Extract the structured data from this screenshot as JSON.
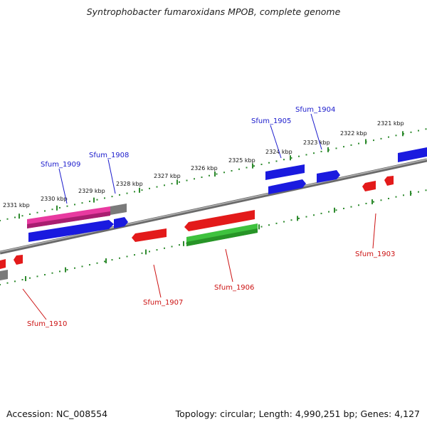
{
  "title": "Syntrophobacter fumaroxidans MPOB, complete genome",
  "footer": {
    "accession": "Accession: NC_008554",
    "summary": "Topology: circular; Length: 4,990,251 bp; Genes: 4,127"
  },
  "ticks": [
    "2321 kbp",
    "2322 kbp",
    "2323 kbp",
    "2324 kbp",
    "2325 kbp",
    "2326 kbp",
    "2327 kbp",
    "2328 kbp",
    "2329 kbp",
    "2330 kbp",
    "2331 kbp"
  ],
  "genes_above": [
    "Sfum_1904",
    "Sfum_1905",
    "Sfum_1908",
    "Sfum_1909"
  ],
  "genes_below": [
    "Sfum_1903",
    "Sfum_1906",
    "Sfum_1907",
    "Sfum_1910"
  ],
  "colors": {
    "backbone": "#8a8a8a",
    "forward_cds": "#1a1adf",
    "reverse_cds": "#e31a1a",
    "rna": "#e83aa0",
    "other": "#3ec23e",
    "pseudo": "#7a7a7a",
    "label_forward": "#1a1acc",
    "label_reverse": "#cc1111",
    "tick": "#2e8b2e"
  }
}
